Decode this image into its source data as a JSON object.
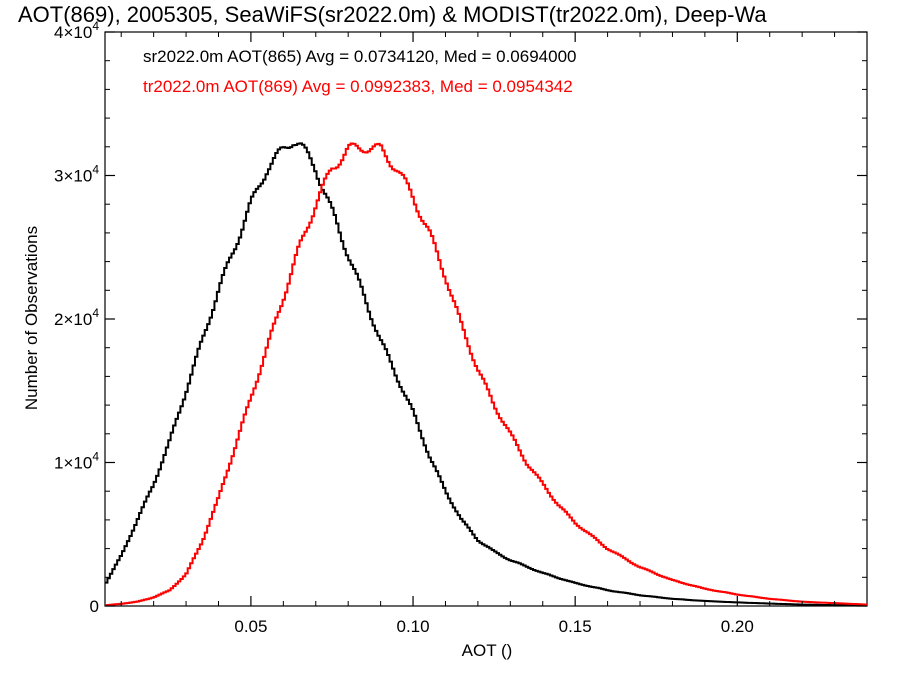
{
  "chart_data": {
    "type": "line",
    "title": "AOT(869), 2005305, SeaWiFS(sr2022.0m) & MODIST(tr2022.0m), Deep-Wa",
    "xlabel": "AOT ()",
    "ylabel": "Number of Observations",
    "xlim": [
      0.005,
      0.24
    ],
    "ylim": [
      0,
      40000
    ],
    "x_ticks": [
      {
        "value": 0.05,
        "label": "0.05"
      },
      {
        "value": 0.1,
        "label": "0.10"
      },
      {
        "value": 0.15,
        "label": "0.15"
      },
      {
        "value": 0.2,
        "label": "0.20"
      }
    ],
    "y_ticks": [
      {
        "value": 0,
        "base": "0",
        "exp": ""
      },
      {
        "value": 10000,
        "base": "1×10",
        "exp": "4"
      },
      {
        "value": 20000,
        "base": "2×10",
        "exp": "4"
      },
      {
        "value": 30000,
        "base": "3×10",
        "exp": "4"
      },
      {
        "value": 40000,
        "base": "4×10",
        "exp": "4"
      }
    ],
    "step": "histogram",
    "grid": false,
    "legend_placement": "top-left",
    "series": [
      {
        "name": "sr2022.0m AOT(865) Avg = 0.0734120, Med = 0.0694000",
        "color": "#000000",
        "x": [
          0.005,
          0.01,
          0.015,
          0.02,
          0.025,
          0.03,
          0.035,
          0.04,
          0.045,
          0.05,
          0.055,
          0.06,
          0.063,
          0.065,
          0.07,
          0.075,
          0.08,
          0.085,
          0.09,
          0.095,
          0.1,
          0.105,
          0.11,
          0.115,
          0.12,
          0.125,
          0.13,
          0.14,
          0.15,
          0.16,
          0.17,
          0.18,
          0.19,
          0.2,
          0.21,
          0.22,
          0.23,
          0.24
        ],
        "values": [
          1500,
          3500,
          6000,
          8500,
          11500,
          15000,
          18500,
          22000,
          25000,
          28000,
          30500,
          31800,
          32500,
          32200,
          30500,
          27500,
          24500,
          21500,
          18500,
          16000,
          13500,
          10500,
          8000,
          6000,
          4600,
          3800,
          3200,
          2300,
          1600,
          1100,
          750,
          500,
          350,
          250,
          170,
          100,
          60,
          30
        ]
      },
      {
        "name": "tr2022.0m AOT(869) Avg = 0.0992383, Med = 0.0954342",
        "color": "#ff0000",
        "x": [
          0.005,
          0.01,
          0.015,
          0.02,
          0.025,
          0.03,
          0.035,
          0.04,
          0.045,
          0.05,
          0.055,
          0.06,
          0.065,
          0.07,
          0.075,
          0.08,
          0.085,
          0.09,
          0.095,
          0.1,
          0.105,
          0.11,
          0.115,
          0.12,
          0.125,
          0.13,
          0.135,
          0.14,
          0.145,
          0.15,
          0.16,
          0.17,
          0.18,
          0.19,
          0.2,
          0.21,
          0.22,
          0.23,
          0.24
        ],
        "values": [
          50,
          150,
          300,
          600,
          1100,
          2200,
          4500,
          7500,
          11000,
          14500,
          18000,
          21500,
          25000,
          28000,
          30500,
          31800,
          32000,
          31800,
          30500,
          28500,
          26000,
          23000,
          19500,
          16500,
          14000,
          12000,
          10000,
          8500,
          7000,
          5800,
          4000,
          2700,
          1800,
          1200,
          800,
          500,
          300,
          200,
          100
        ]
      }
    ]
  }
}
